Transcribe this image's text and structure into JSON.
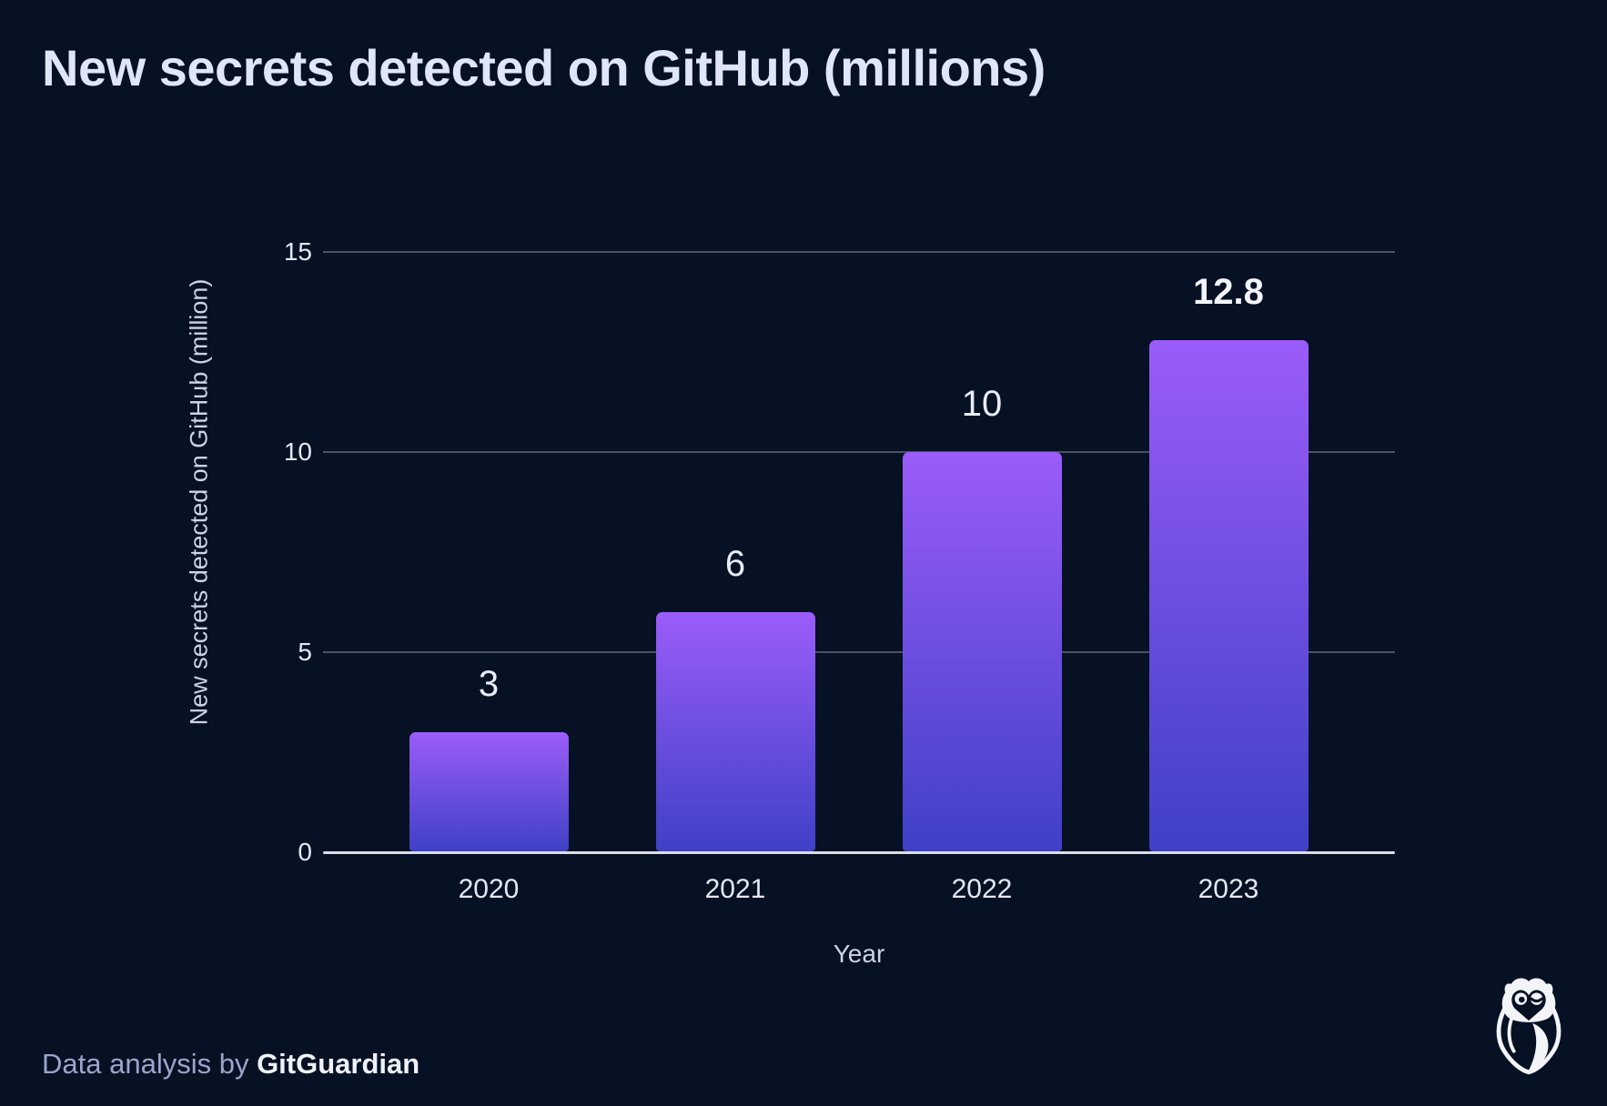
{
  "title": "New secrets detected on GitHub (millions)",
  "footer": {
    "prefix": "Data analysis by ",
    "brand": "GitGuardian"
  },
  "logo": "gitguardian-owl-logo",
  "colors": {
    "background": "#071124",
    "bar_gradient_top": "#9b5cfa",
    "bar_gradient_bottom": "#3f40c8",
    "gridline": "#4a5266",
    "axis_line": "#d9dee9",
    "title_text": "#dfe6f9",
    "tick_text": "#e3e8f2",
    "axis_title_text": "#ccd3e2",
    "data_label_text": "#e8ecf6",
    "footer_prefix_text": "#9aa6cb",
    "footer_brand_text": "#eef1f9",
    "logo_white": "#f2f4f8"
  },
  "chart_data": {
    "type": "bar",
    "title": "New secrets detected on GitHub (millions)",
    "categories": [
      "2020",
      "2021",
      "2022",
      "2023"
    ],
    "values": [
      3,
      6,
      10,
      12.8
    ],
    "data_labels": [
      "3",
      "6",
      "10",
      "12.8"
    ],
    "data_labels_bold": [
      false,
      false,
      false,
      true
    ],
    "xlabel": "Year",
    "ylabel": "New secrets detected on GitHub (million)",
    "ylim": [
      0,
      15
    ],
    "yticks": [
      0,
      5,
      10,
      15
    ],
    "ytick_labels": [
      "0",
      "5",
      "10",
      "15"
    ],
    "grid": true,
    "legend": "none"
  }
}
